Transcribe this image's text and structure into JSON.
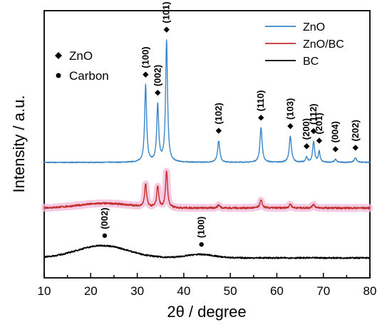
{
  "chart_data": {
    "type": "line",
    "xlabel": "2θ / degree",
    "ylabel": "Intensity / a.u.",
    "xlim": [
      10,
      80
    ],
    "xticks": [
      10,
      20,
      30,
      40,
      50,
      60,
      70,
      80
    ],
    "y_ticks_shown": false,
    "grid": false,
    "legend_position": "top-right",
    "series": [
      {
        "name": "ZnO",
        "color": "#3b86c8",
        "baseline": 0.0,
        "noise": 0.006,
        "peaks": [
          {
            "x": 31.8,
            "height": 1.0,
            "width": 0.25
          },
          {
            "x": 34.4,
            "height": 0.74,
            "width": 0.25
          },
          {
            "x": 36.3,
            "height": 1.58,
            "width": 0.25
          },
          {
            "x": 47.5,
            "height": 0.28,
            "width": 0.28
          },
          {
            "x": 56.6,
            "height": 0.45,
            "width": 0.28
          },
          {
            "x": 62.9,
            "height": 0.34,
            "width": 0.28
          },
          {
            "x": 66.4,
            "height": 0.07,
            "width": 0.22
          },
          {
            "x": 67.9,
            "height": 0.27,
            "width": 0.25
          },
          {
            "x": 69.1,
            "height": 0.14,
            "width": 0.22
          },
          {
            "x": 72.6,
            "height": 0.04,
            "width": 0.25
          },
          {
            "x": 76.9,
            "height": 0.06,
            "width": 0.3
          }
        ]
      },
      {
        "name": "ZnO/BC",
        "color": "#c0302c",
        "band_color": "#f3b8d8",
        "baseline": -0.9,
        "noise": 0.012,
        "humps": [
          {
            "x": 23.0,
            "height": 0.06,
            "width": 5.5
          }
        ],
        "peaks": [
          {
            "x": 31.8,
            "height": 0.3,
            "width": 0.25
          },
          {
            "x": 34.4,
            "height": 0.28,
            "width": 0.25
          },
          {
            "x": 36.3,
            "height": 0.48,
            "width": 0.25
          },
          {
            "x": 47.5,
            "height": 0.04,
            "width": 0.3
          },
          {
            "x": 56.6,
            "height": 0.1,
            "width": 0.3
          },
          {
            "x": 62.9,
            "height": 0.05,
            "width": 0.3
          },
          {
            "x": 67.9,
            "height": 0.05,
            "width": 0.3
          }
        ]
      },
      {
        "name": "BC",
        "color": "#000000",
        "baseline": -1.9,
        "noise": 0.01,
        "humps": [
          {
            "x": 22.5,
            "height": 0.16,
            "width": 5.5
          },
          {
            "x": 43.5,
            "height": 0.045,
            "width": 3.0
          }
        ],
        "peaks": []
      }
    ],
    "annotations": [
      {
        "text": "(100)",
        "x": 31.8,
        "series": "ZnO",
        "marker": "diamond"
      },
      {
        "text": "(002)",
        "x": 34.4,
        "series": "ZnO",
        "marker": "diamond"
      },
      {
        "text": "(101)",
        "x": 36.3,
        "series": "ZnO",
        "marker": "diamond"
      },
      {
        "text": "(102)",
        "x": 47.5,
        "series": "ZnO",
        "marker": "diamond"
      },
      {
        "text": "(110)",
        "x": 56.6,
        "series": "ZnO",
        "marker": "diamond"
      },
      {
        "text": "(103)",
        "x": 62.9,
        "series": "ZnO",
        "marker": "diamond"
      },
      {
        "text": "(200)",
        "x": 66.4,
        "series": "ZnO",
        "marker": "diamond"
      },
      {
        "text": "(112)",
        "x": 67.9,
        "series": "ZnO",
        "marker": "diamond"
      },
      {
        "text": "(201)",
        "x": 69.1,
        "series": "ZnO",
        "marker": "diamond"
      },
      {
        "text": "(004)",
        "x": 72.6,
        "series": "ZnO",
        "marker": "diamond"
      },
      {
        "text": "(202)",
        "x": 76.9,
        "series": "ZnO",
        "marker": "diamond"
      },
      {
        "text": "(002)",
        "x": 23.0,
        "series": "BC",
        "marker": "dot"
      },
      {
        "text": "(100)",
        "x": 43.8,
        "series": "BC",
        "marker": "dot"
      }
    ],
    "marker_key": [
      {
        "marker": "diamond",
        "label": "ZnO"
      },
      {
        "marker": "dot",
        "label": "Carbon"
      }
    ]
  }
}
